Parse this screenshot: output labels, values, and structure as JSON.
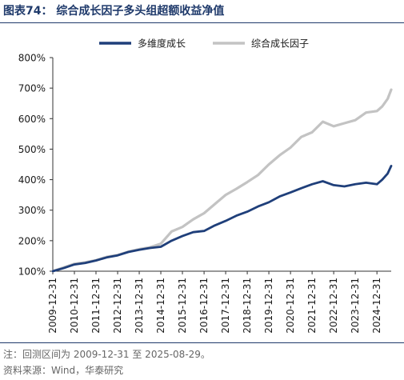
{
  "header": {
    "title": "图表74：  综合成长因子多头组超额收益净值"
  },
  "footer": {
    "note": "注：回测区间为 2009-12-31 至 2025-08-29。",
    "source": "资料来源：Wind，华泰研究"
  },
  "chart_data": {
    "type": "line",
    "title": "",
    "xlabel": "",
    "ylabel": "",
    "ylim": [
      100,
      800
    ],
    "yticks": [
      "100%",
      "200%",
      "300%",
      "400%",
      "500%",
      "600%",
      "700%",
      "800%"
    ],
    "xticks": [
      "2009-12-31",
      "2010-12-31",
      "2011-12-31",
      "2012-12-31",
      "2013-12-31",
      "2014-12-31",
      "2015-12-31",
      "2016-12-31",
      "2017-12-31",
      "2018-12-31",
      "2019-12-31",
      "2020-12-31",
      "2021-12-31",
      "2022-12-31",
      "2023-12-31",
      "2024-12-31"
    ],
    "grid": false,
    "legend_position": "top",
    "x": [
      "2009-12-31",
      "2010-06-30",
      "2010-12-31",
      "2011-06-30",
      "2011-12-31",
      "2012-06-30",
      "2012-12-31",
      "2013-06-30",
      "2013-12-31",
      "2014-06-30",
      "2014-12-31",
      "2015-06-30",
      "2015-12-31",
      "2016-06-30",
      "2016-12-31",
      "2017-06-30",
      "2017-12-31",
      "2018-06-30",
      "2018-12-31",
      "2019-06-30",
      "2019-12-31",
      "2020-06-30",
      "2020-12-31",
      "2021-06-30",
      "2021-12-31",
      "2022-06-30",
      "2022-12-31",
      "2023-06-30",
      "2023-12-31",
      "2024-06-30",
      "2024-12-31",
      "2025-03-31",
      "2025-06-30",
      "2025-08-29"
    ],
    "series": [
      {
        "name": "多维度成长",
        "color": "#1f3f7a",
        "values": [
          100,
          110,
          122,
          127,
          135,
          145,
          152,
          163,
          170,
          176,
          180,
          200,
          215,
          228,
          232,
          250,
          265,
          282,
          295,
          312,
          326,
          345,
          358,
          372,
          385,
          395,
          382,
          378,
          385,
          390,
          385,
          400,
          420,
          445
        ]
      },
      {
        "name": "综合成长因子",
        "color": "#c3c3c3",
        "values": [
          100,
          112,
          124,
          129,
          136,
          147,
          153,
          164,
          172,
          178,
          190,
          230,
          245,
          270,
          290,
          320,
          350,
          370,
          392,
          415,
          450,
          480,
          505,
          540,
          555,
          590,
          575,
          585,
          595,
          620,
          625,
          640,
          665,
          695
        ]
      }
    ]
  }
}
